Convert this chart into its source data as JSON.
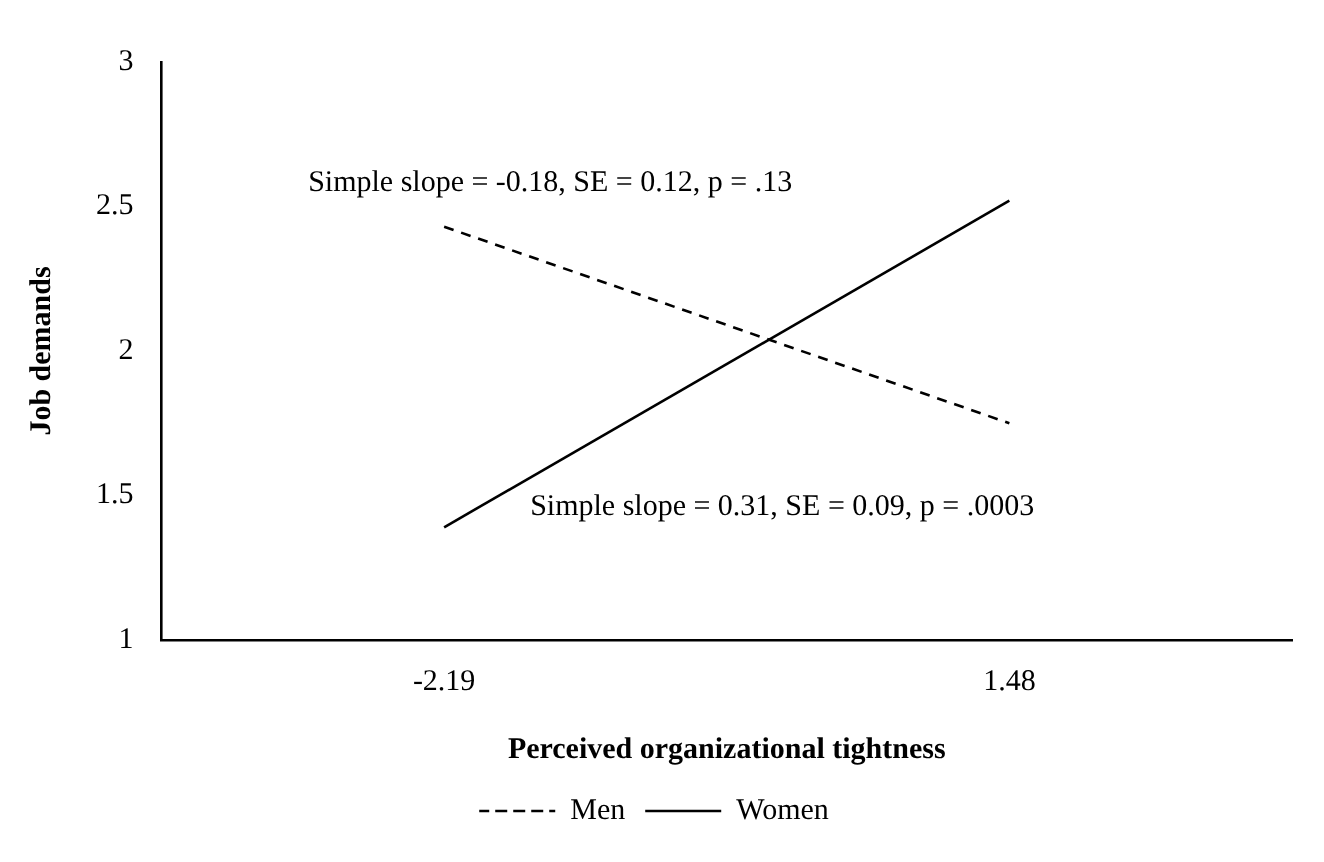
{
  "chart_data": {
    "type": "line",
    "xlabel": "Perceived organizational tightness",
    "ylabel": "Job demands",
    "categories": [
      "-2.19",
      "1.48"
    ],
    "series": [
      {
        "name": "Men",
        "color": "#000000",
        "values": [
          2.43,
          1.75
        ],
        "line_style": "dashed"
      },
      {
        "name": "Women",
        "color": "#000000",
        "values": [
          1.39,
          2.52
        ],
        "line_style": "solid"
      }
    ],
    "ylim": [
      1,
      3
    ],
    "yticks": [
      1,
      1.5,
      2,
      2.5,
      3
    ],
    "grid": false,
    "legend": "bottom",
    "marker": "none",
    "annotations": [
      "Simple slope = -0.18, SE = 0.12, p = .13",
      "Simple slope = 0.31, SE = 0.09, p = .0003"
    ]
  }
}
